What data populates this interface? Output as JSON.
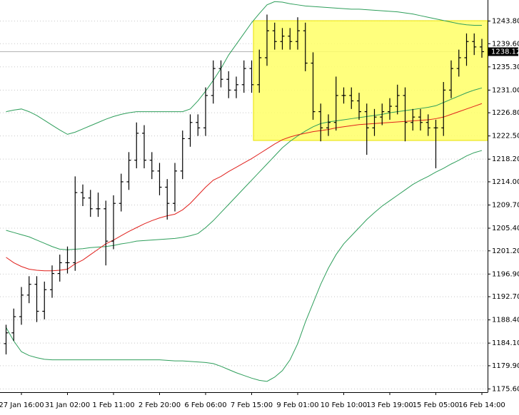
{
  "chart_data": {
    "type": "ohlc",
    "color": "#000000",
    "categories": [
      null,
      null,
      "27 Jan 16:00",
      null,
      null,
      null,
      null,
      null,
      "31 Jan 02:00",
      null,
      null,
      null,
      null,
      null,
      "1 Feb 11:00",
      null,
      null,
      null,
      null,
      null,
      "2 Feb 20:00",
      null,
      null,
      null,
      null,
      null,
      "6 Feb 06:00",
      null,
      null,
      null,
      null,
      null,
      "7 Feb 15:00",
      null,
      null,
      null,
      null,
      null,
      "9 Feb 01:00",
      null,
      null,
      null,
      null,
      null,
      "10 Feb 10:00",
      null,
      null,
      null,
      null,
      null,
      "13 Feb 19:00",
      null,
      null,
      null,
      null,
      null,
      "15 Feb 05:00",
      null,
      null,
      null,
      null,
      null,
      "16 Feb 14:00"
    ],
    "ohlc": {
      "open": [
        1184,
        1186,
        1189,
        1193,
        1195,
        1190,
        1194,
        1197,
        1199,
        1199,
        1212,
        1211,
        1209,
        1209,
        1203,
        1210,
        1214,
        1218,
        1223,
        1218,
        1216,
        1213,
        1210,
        1216,
        1222,
        1225,
        1224,
        1230,
        1235,
        1233,
        1231,
        1232,
        1235,
        1232,
        1237,
        1242,
        1240,
        1241,
        1240,
        1242,
        1236,
        1227,
        1224,
        1225,
        1230,
        1230,
        1229,
        1227,
        1224,
        1226,
        1227,
        1228,
        1230,
        1225,
        1226,
        1225,
        1224,
        1224,
        1231,
        1235,
        1237,
        1240,
        1239
      ],
      "high": [
        1187.5,
        1190.5,
        1194.5,
        1196.5,
        1196.5,
        1195.5,
        1198.5,
        1200.5,
        1202,
        1215,
        1213.5,
        1212.5,
        1212,
        1210.5,
        1211.5,
        1215.5,
        1219.5,
        1225,
        1224.5,
        1219.5,
        1217.5,
        1214.5,
        1217.5,
        1223.5,
        1226.5,
        1226.5,
        1231.5,
        1236.5,
        1236.5,
        1234.5,
        1233.5,
        1236.5,
        1236.5,
        1238.5,
        1245,
        1243.5,
        1242.5,
        1242.5,
        1244.5,
        1243.5,
        1238,
        1228.5,
        1226.5,
        1233.5,
        1231.5,
        1231.5,
        1230.5,
        1228.5,
        1227.5,
        1228.5,
        1229.5,
        1232,
        1231.5,
        1227.5,
        1227.5,
        1226.5,
        1225.5,
        1232.5,
        1236.5,
        1238.5,
        1241.5,
        1241.5,
        1240.5
      ],
      "low": [
        1182,
        1184.5,
        1187.5,
        1191.5,
        1188,
        1188.5,
        1192.5,
        1195.5,
        1197,
        1197.5,
        1209.5,
        1207.5,
        1207.5,
        1198.5,
        1201.5,
        1208.5,
        1212.5,
        1216.5,
        1216.5,
        1214.5,
        1211.5,
        1207,
        1208.5,
        1214.5,
        1220.5,
        1222.5,
        1222.5,
        1228.5,
        1231.5,
        1229.5,
        1229.5,
        1230.5,
        1230.5,
        1230.5,
        1235.5,
        1238.5,
        1238.5,
        1238.5,
        1238.5,
        1234.5,
        1225.5,
        1221.5,
        1222.5,
        1223.5,
        1228.5,
        1227.5,
        1225.5,
        1219,
        1222.5,
        1224.5,
        1225.5,
        1226.5,
        1221.5,
        1223.5,
        1223.5,
        1222.5,
        1216.5,
        1222.5,
        1229.5,
        1233.5,
        1235.5,
        1237.5,
        1237
      ],
      "close": [
        1186,
        1189,
        1193,
        1195,
        1190,
        1194,
        1197,
        1199,
        1199,
        1212,
        1211,
        1209,
        1209,
        1203,
        1210,
        1214,
        1218,
        1223,
        1218,
        1216,
        1213,
        1210,
        1216,
        1222,
        1225,
        1224,
        1230,
        1235,
        1233,
        1231,
        1232,
        1235,
        1232,
        1237,
        1242,
        1240,
        1241,
        1240,
        1242,
        1236,
        1227,
        1224,
        1225,
        1230,
        1230,
        1229,
        1227,
        1224,
        1226,
        1227,
        1228,
        1230,
        1225,
        1226,
        1225,
        1224,
        1224,
        1231,
        1235,
        1237,
        1240,
        1239,
        1238.12
      ]
    },
    "indicators": [
      {
        "color": "#2e9e5b",
        "values": [
          1227,
          1227.3,
          1227.5,
          1227,
          1226.3,
          1225.4,
          1224.5,
          1223.6,
          1222.8,
          1223.2,
          1223.8,
          1224.4,
          1225,
          1225.6,
          1226.1,
          1226.5,
          1226.8,
          1227,
          1227,
          1227,
          1227,
          1227,
          1227,
          1227,
          1227.5,
          1229,
          1230.8,
          1232.8,
          1235,
          1237.5,
          1239.5,
          1241.5,
          1243.5,
          1245.2,
          1246.8,
          1247.4,
          1247.3,
          1247,
          1246.8,
          1246.6,
          1246.5,
          1246.4,
          1246.3,
          1246.2,
          1246.1,
          1246,
          1246,
          1245.9,
          1245.8,
          1245.7,
          1245.6,
          1245.5,
          1245.3,
          1245.1,
          1244.8,
          1244.5,
          1244.2,
          1243.9,
          1243.6,
          1243.3,
          1243.1,
          1243,
          1243
        ]
      },
      {
        "color": "#2e9e5b",
        "values": [
          1205,
          1204.6,
          1204.2,
          1203.8,
          1203.2,
          1202.6,
          1202,
          1201.5,
          1201.4,
          1201.5,
          1201.6,
          1201.8,
          1201.9,
          1202,
          1202.2,
          1202.5,
          1202.7,
          1203,
          1203.1,
          1203.2,
          1203.3,
          1203.4,
          1203.5,
          1203.7,
          1204,
          1204.4,
          1205.5,
          1206.8,
          1208.3,
          1209.8,
          1211.3,
          1212.8,
          1214.3,
          1215.8,
          1217.3,
          1218.8,
          1220.3,
          1221.5,
          1222.5,
          1223.4,
          1224.2,
          1224.8,
          1225.1,
          1225.3,
          1225.5,
          1225.7,
          1225.9,
          1226.1,
          1226.3,
          1226.5,
          1226.8,
          1227,
          1227.2,
          1227.4,
          1227.6,
          1227.8,
          1228.1,
          1228.7,
          1229.3,
          1229.9,
          1230.5,
          1231,
          1231.4
        ]
      },
      {
        "color": "#2e9e5b",
        "values": [
          1187,
          1184.5,
          1182.5,
          1181.8,
          1181.4,
          1181.1,
          1181,
          1181,
          1181,
          1181,
          1181,
          1181,
          1181,
          1181,
          1181,
          1181,
          1181,
          1181,
          1181,
          1181,
          1181,
          1180.9,
          1180.8,
          1180.8,
          1180.7,
          1180.6,
          1180.5,
          1180.3,
          1179.8,
          1179.2,
          1178.6,
          1178.1,
          1177.6,
          1177.2,
          1177,
          1177.8,
          1179,
          1181,
          1184,
          1188,
          1191.5,
          1195,
          1198,
          1200.5,
          1202.5,
          1204,
          1205.5,
          1207,
          1208.3,
          1209.5,
          1210.5,
          1211.5,
          1212.5,
          1213.5,
          1214.3,
          1215,
          1215.8,
          1216.5,
          1217.3,
          1218,
          1218.8,
          1219.4,
          1219.8
        ]
      },
      {
        "color": "#e0201c",
        "values": [
          1200,
          1199,
          1198.3,
          1197.8,
          1197.6,
          1197.5,
          1197.5,
          1197.6,
          1197.8,
          1198.8,
          1199.5,
          1200.5,
          1201.5,
          1202.5,
          1203.2,
          1204,
          1204.8,
          1205.5,
          1206.2,
          1206.8,
          1207.3,
          1207.7,
          1208,
          1208.8,
          1210,
          1211.5,
          1213,
          1214.3,
          1215,
          1215.9,
          1216.7,
          1217.5,
          1218.3,
          1219.2,
          1220.1,
          1221,
          1221.8,
          1222.3,
          1222.7,
          1223,
          1223.3,
          1223.5,
          1223.7,
          1224,
          1224.2,
          1224.4,
          1224.6,
          1224.7,
          1224.8,
          1224.9,
          1225,
          1225.1,
          1225.2,
          1225.3,
          1225.4,
          1225.5,
          1225.7,
          1226,
          1226.5,
          1227,
          1227.5,
          1228,
          1228.5
        ]
      }
    ],
    "ylim": [
      1175.0,
      1247.7
    ],
    "yticks": [
      {
        "value": 1243.8,
        "label": "1243.80"
      },
      {
        "value": 1239.6,
        "label": "1239.60"
      },
      {
        "value": 1235.3,
        "label": "1235.30"
      },
      {
        "value": 1231.0,
        "label": "1231.00"
      },
      {
        "value": 1226.8,
        "label": "1226.80"
      },
      {
        "value": 1222.5,
        "label": "1222.50"
      },
      {
        "value": 1218.2,
        "label": "1218.20"
      },
      {
        "value": 1214.0,
        "label": "1214.00"
      },
      {
        "value": 1209.7,
        "label": "1209.70"
      },
      {
        "value": 1205.4,
        "label": "1205.40"
      },
      {
        "value": 1201.2,
        "label": "1201.20"
      },
      {
        "value": 1196.9,
        "label": "1196.90"
      },
      {
        "value": 1192.7,
        "label": "1192.70"
      },
      {
        "value": 1188.4,
        "label": "1188.40"
      },
      {
        "value": 1184.1,
        "label": "1184.10"
      },
      {
        "value": 1179.9,
        "label": "1179.90"
      },
      {
        "value": 1175.6,
        "label": "1175.60"
      }
    ],
    "grid": true,
    "current_price": 1238.12,
    "current_price_color": "#b4b4b4"
  }
}
